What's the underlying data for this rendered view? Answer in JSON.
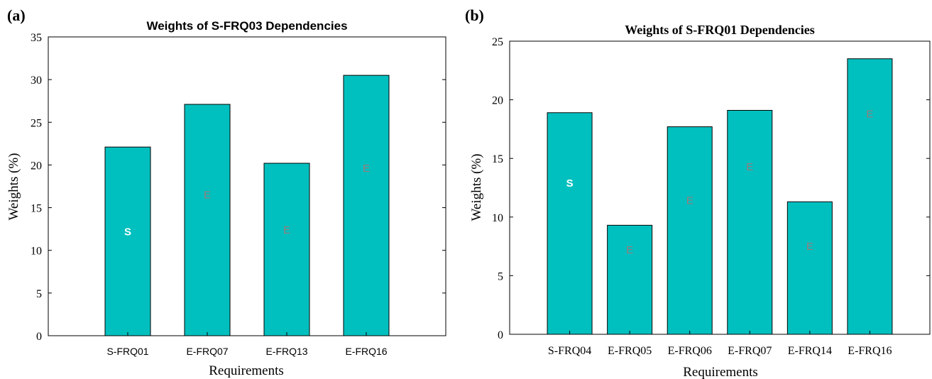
{
  "chart_data": [
    {
      "panel_label": "(a)",
      "type": "bar",
      "title": "Weights of S-FRQ03 Dependencies",
      "xlabel": "Requirements",
      "ylabel": "Weights (%)",
      "ylim": [
        0,
        35
      ],
      "yticks": [
        0,
        5,
        10,
        15,
        20,
        25,
        30,
        35
      ],
      "categories": [
        "S-FRQ01",
        "E-FRQ07",
        "E-FRQ13",
        "E-FRQ16"
      ],
      "values": [
        22.1,
        27.1,
        20.2,
        30.5
      ],
      "bar_labels": [
        "S",
        "E",
        "E",
        "E"
      ],
      "bar_label_values": [
        12.2,
        16.5,
        12.4,
        19.6
      ],
      "bar_color": "#00C0BF",
      "s_label_color": "#ffffff",
      "e_label_color": "#9a7a7a"
    },
    {
      "panel_label": "(b)",
      "type": "bar",
      "title": "Weights of S-FRQ01 Dependencies",
      "xlabel": "Requirements",
      "ylabel": "Weights (%)",
      "ylim": [
        0,
        25
      ],
      "yticks": [
        0,
        5,
        10,
        15,
        20,
        25
      ],
      "categories": [
        "S-FRQ04",
        "E-FRQ05",
        "E-FRQ06",
        "E-FRQ07",
        "E-FRQ14",
        "E-FRQ16"
      ],
      "values": [
        18.9,
        9.3,
        17.7,
        19.1,
        11.3,
        23.5
      ],
      "bar_labels": [
        "S",
        "E",
        "E",
        "E",
        "E",
        "E"
      ],
      "bar_label_values": [
        12.9,
        7.2,
        11.4,
        14.3,
        7.5,
        18.8
      ],
      "bar_color": "#00C0BF",
      "s_label_color": "#ffffff",
      "e_label_color": "#9a7a7a"
    }
  ]
}
